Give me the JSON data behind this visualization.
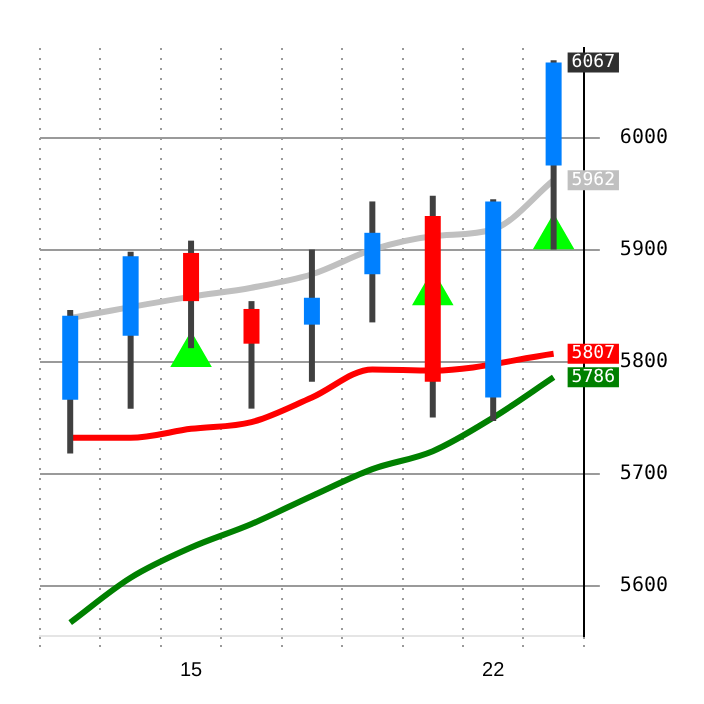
{
  "chart_data": {
    "type": "candlestick",
    "categories": [
      null,
      null,
      "15",
      null,
      null,
      null,
      null,
      "22",
      null
    ],
    "ohlc": [
      [
        5766,
        5846,
        5718,
        5841
      ],
      [
        5823,
        5898,
        5758,
        5894
      ],
      [
        5897,
        5908,
        5812,
        5854
      ],
      [
        5847,
        5854,
        5758,
        5816
      ],
      [
        5833,
        5900,
        5782,
        5857
      ],
      [
        5878,
        5943,
        5835,
        5915
      ],
      [
        5930,
        5948,
        5750,
        5782
      ],
      [
        5768,
        5945,
        5747,
        5943
      ],
      [
        5975,
        6069,
        5900,
        6067
      ]
    ],
    "value_labels": [
      null,
      null,
      null,
      null,
      null,
      null,
      null,
      null,
      "6067"
    ],
    "colors": [
      "#0080ff",
      "#0080ff",
      "#ff0000",
      "#ff0000",
      "#0080ff",
      "#0080ff",
      "#ff0000",
      "#0080ff",
      "#0080ff"
    ],
    "series": [
      {
        "type": "line",
        "color": "#c0c0c0",
        "values": [
          5839,
          null,
          5858,
          5866,
          5878,
          5900,
          5912,
          5918,
          5962
        ],
        "value_labels": [
          null,
          null,
          null,
          null,
          null,
          null,
          null,
          null,
          "5962"
        ]
      },
      {
        "type": "line",
        "color": "#ff0000",
        "values": [
          5732,
          5732,
          5740,
          5746,
          5768,
          5793,
          5792,
          null,
          5807
        ],
        "value_labels": [
          null,
          null,
          null,
          null,
          null,
          null,
          null,
          null,
          "5807"
        ]
      },
      {
        "type": "line",
        "color": "#008000",
        "values": [
          5567,
          5607,
          5634,
          5655,
          5680,
          5704,
          5720,
          5750,
          5786
        ],
        "value_labels": [
          null,
          null,
          null,
          null,
          null,
          null,
          null,
          null,
          "5786"
        ]
      },
      {
        "type": "scatter",
        "color": "#00ff00",
        "marker": "triangle",
        "values": [
          null,
          null,
          5806,
          null,
          null,
          null,
          5861,
          null,
          5911
        ]
      }
    ],
    "ylim": [
      5555,
      6080
    ],
    "yticks": [
      5600,
      5700,
      5800,
      5900,
      6000
    ],
    "grid": true,
    "legend": false
  }
}
